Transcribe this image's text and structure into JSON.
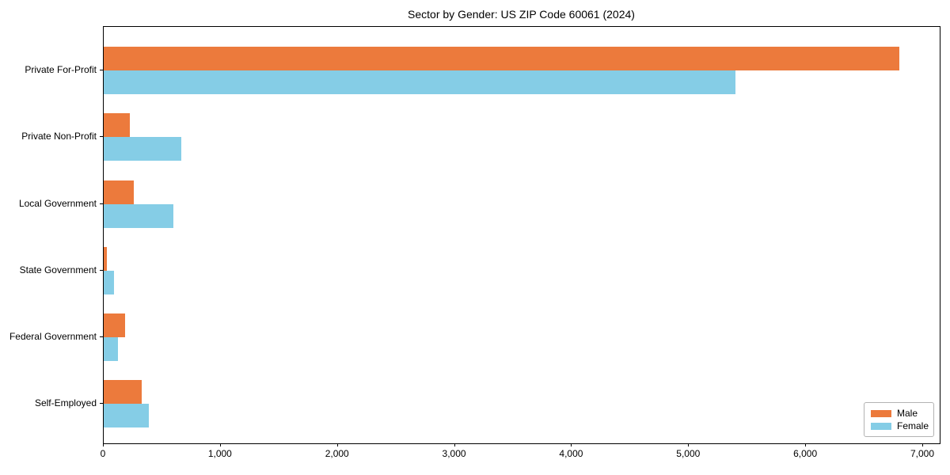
{
  "chart_data": {
    "type": "bar",
    "orientation": "horizontal",
    "title": "Sector by Gender: US ZIP Code 60061 (2024)",
    "categories": [
      "Private For-Profit",
      "Private Non-Profit",
      "Local Government",
      "State Government",
      "Federal Government",
      "Self-Employed"
    ],
    "series": [
      {
        "name": "Male",
        "color": "#EC7A3C",
        "values": [
          6800,
          220,
          255,
          30,
          185,
          325
        ]
      },
      {
        "name": "Female",
        "color": "#85CDE6",
        "values": [
          5400,
          660,
          595,
          90,
          120,
          385
        ]
      }
    ],
    "xlabel": "",
    "ylabel": "",
    "xlim": [
      0,
      7000
    ],
    "x_ticks": [
      0,
      1000,
      2000,
      3000,
      4000,
      5000,
      6000,
      7000
    ],
    "x_tick_labels": [
      "0",
      "1,000",
      "2,000",
      "3,000",
      "4,000",
      "5,000",
      "6,000",
      "7,000"
    ],
    "grid": false,
    "legend": {
      "position": "lower right",
      "entries": [
        "Male",
        "Female"
      ]
    },
    "colors": {
      "male": "#EC7A3C",
      "female": "#85CDE6",
      "axis": "#000000",
      "legend_border": "#b3b3b3",
      "background": "#ffffff"
    }
  }
}
